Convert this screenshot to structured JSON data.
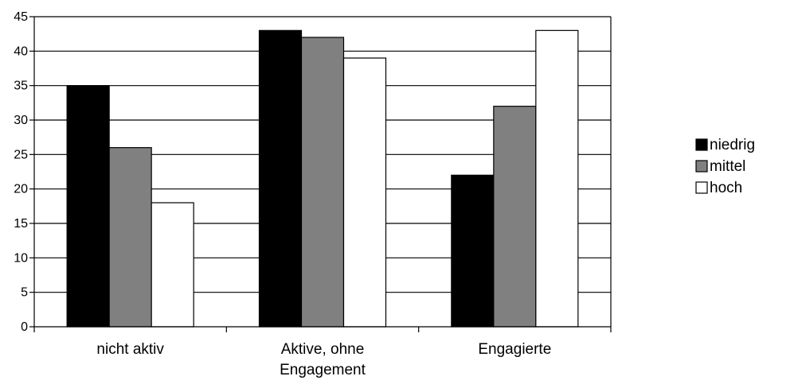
{
  "chart_data": {
    "type": "bar",
    "categories": [
      [
        "nicht aktiv"
      ],
      [
        "Aktive, ohne",
        "Engagement"
      ],
      [
        "Engagierte"
      ]
    ],
    "series": [
      {
        "name": "niedrig",
        "color": "#000000",
        "values": [
          35,
          43,
          22
        ]
      },
      {
        "name": "mittel",
        "color": "#808080",
        "values": [
          26,
          42,
          32
        ]
      },
      {
        "name": "hoch",
        "color": "#ffffff",
        "values": [
          18,
          39,
          43
        ]
      }
    ],
    "ylim": [
      0,
      45
    ],
    "yticks": [
      0,
      5,
      10,
      15,
      20,
      25,
      30,
      35,
      40,
      45
    ],
    "grid": true,
    "legend_position": "right",
    "title": "",
    "xlabel": "",
    "ylabel": ""
  }
}
